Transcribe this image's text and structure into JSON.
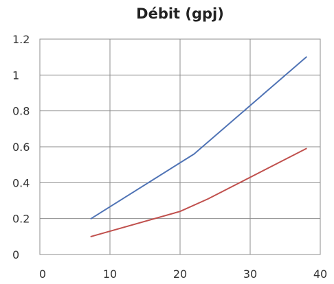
{
  "chart_data": {
    "type": "line",
    "title": "Débit (gpj)",
    "xlabel": "",
    "ylabel": "",
    "xlim": [
      0,
      40
    ],
    "ylim": [
      0,
      1.2
    ],
    "x_ticks": [
      0,
      10,
      20,
      30,
      40
    ],
    "y_ticks": [
      0,
      0.2,
      0.4,
      0.6,
      0.8,
      1,
      1.2
    ],
    "x_tick_labels": [
      "0",
      "10",
      "20",
      "30",
      "40"
    ],
    "y_tick_labels": [
      "0",
      "0.2",
      "0.4",
      "0.6",
      "0.8",
      "1",
      "1.2"
    ],
    "grid": true,
    "legend": "none",
    "series": [
      {
        "color": "#4f73b5",
        "x": [
          7.3,
          22,
          38
        ],
        "y": [
          0.2,
          0.56,
          1.1
        ]
      },
      {
        "color": "#c0504d",
        "x": [
          7.3,
          20,
          24,
          38
        ],
        "y": [
          0.1,
          0.24,
          0.31,
          0.59
        ]
      }
    ]
  }
}
